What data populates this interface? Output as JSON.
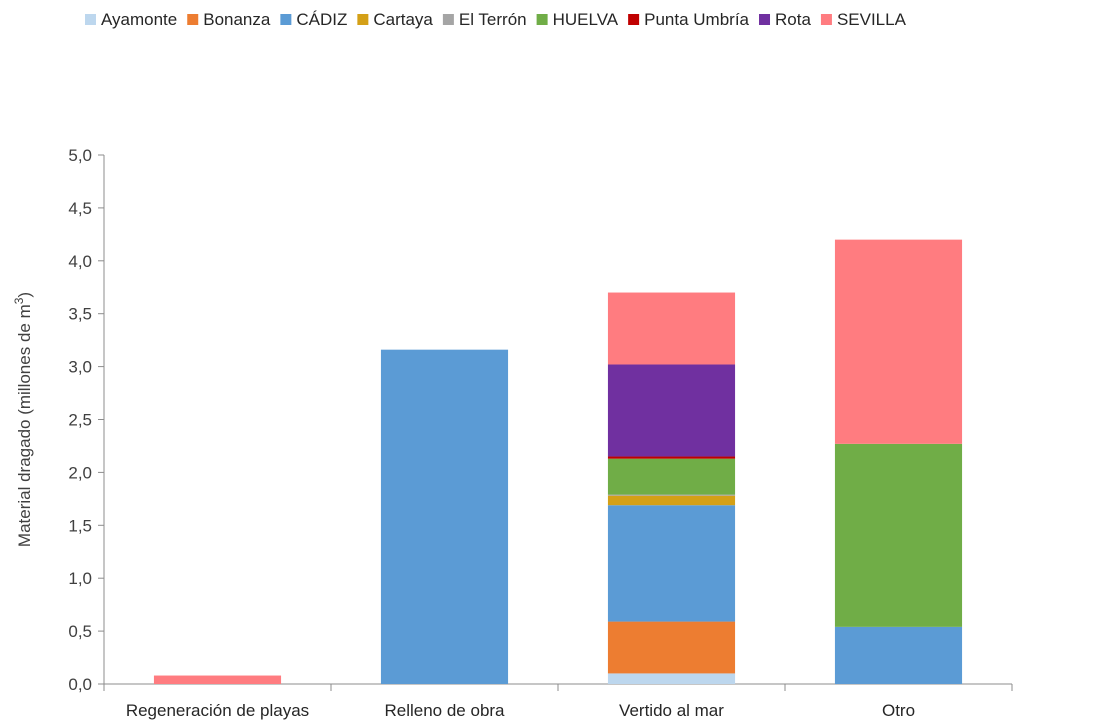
{
  "chart_data": {
    "type": "bar",
    "stacked": true,
    "ylabel": "Material dragado (millones de m",
    "ylabel_superscript": "3",
    "ylabel_close": ")",
    "ylim": [
      0,
      5
    ],
    "yticks": [
      "0,0",
      "0,5",
      "1,0",
      "1,5",
      "2,0",
      "2,5",
      "3,0",
      "3,5",
      "4,0",
      "4,5",
      "5,0"
    ],
    "ytick_values": [
      0,
      0.5,
      1,
      1.5,
      2,
      2.5,
      3,
      3.5,
      4,
      4.5,
      5
    ],
    "categories": [
      "Regeneración de playas",
      "Relleno de obra",
      "Vertido al mar",
      "Otro"
    ],
    "legend_position": "top",
    "series": [
      {
        "name": "Ayamonte",
        "color": "#bdd7ee",
        "values": [
          0,
          0,
          0.1,
          0
        ]
      },
      {
        "name": "Bonanza",
        "color": "#ed7d31",
        "values": [
          0,
          0,
          0.49,
          0
        ]
      },
      {
        "name": "CÁDIZ",
        "color": "#5b9bd5",
        "values": [
          0,
          3.16,
          1.1,
          0.54
        ]
      },
      {
        "name": "Cartaya",
        "color": "#d4a017",
        "values": [
          0,
          0,
          0.09,
          0
        ]
      },
      {
        "name": "El Terrón",
        "color": "#a5a5a5",
        "values": [
          0,
          0,
          0.01,
          0
        ]
      },
      {
        "name": "HUELVA",
        "color": "#70ad47",
        "values": [
          0,
          0,
          0.34,
          1.73
        ]
      },
      {
        "name": "Punta Umbría",
        "color": "#c00000",
        "values": [
          0,
          0,
          0.02,
          0
        ]
      },
      {
        "name": "Rota",
        "color": "#7030a0",
        "values": [
          0,
          0,
          0.87,
          0
        ]
      },
      {
        "name": "SEVILLA",
        "color": "#ff7c80",
        "values": [
          0.08,
          0,
          0.68,
          1.93
        ]
      }
    ]
  }
}
